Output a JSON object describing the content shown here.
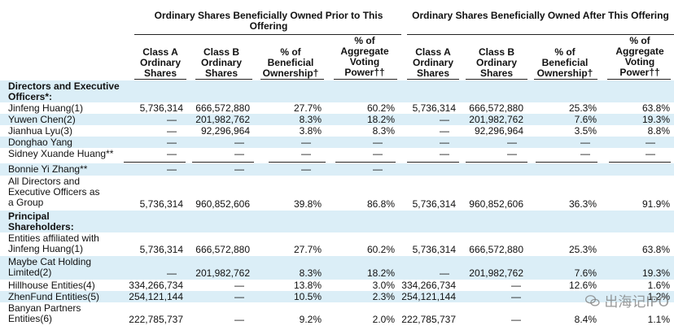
{
  "headers": {
    "prior": "Ordinary Shares Beneficially Owned Prior to This Offering",
    "after": "Ordinary Shares Beneficially Owned After This Offering",
    "columns": [
      "Class A Ordinary Shares",
      "Class B Ordinary Shares",
      "% of Beneficial Ownership†",
      "% of Aggregate Voting Power††",
      "Class A Ordinary Shares",
      "Class B Ordinary Shares",
      "% of Beneficial Ownership†",
      "% of Aggregate Voting Power††"
    ]
  },
  "sections": {
    "directors": "Directors and Executive Officers*:",
    "principal": "Principal Shareholders:"
  },
  "rows": [
    {
      "label": "Jinfeng Huang(1)",
      "values": [
        "5,736,314",
        "666,572,880",
        "27.7%",
        "60.2%",
        "5,736,314",
        "666,572,880",
        "25.3%",
        "63.8%"
      ]
    },
    {
      "label": "Yuwen Chen(2)",
      "values": [
        "—",
        "201,982,762",
        "8.3%",
        "18.2%",
        "—",
        "201,982,762",
        "7.6%",
        "19.3%"
      ]
    },
    {
      "label": "Jianhua Lyu(3)",
      "values": [
        "—",
        "92,296,964",
        "3.8%",
        "8.3%",
        "—",
        "92,296,964",
        "3.5%",
        "8.8%"
      ]
    },
    {
      "label": "Donghao Yang",
      "values": [
        "—",
        "—",
        "—",
        "—",
        "—",
        "—",
        "—",
        "—"
      ]
    },
    {
      "label": "Sidney Xuande Huang**",
      "values": [
        "—",
        "—",
        "—",
        "—",
        "—",
        "—",
        "—",
        "—"
      ]
    },
    {
      "label": "Bonnie Yi Zhang**",
      "values": [
        "—",
        "—",
        "—",
        "—",
        "",
        "",
        "",
        ""
      ]
    },
    {
      "label": "All Directors and Executive Officers as a Group",
      "values": [
        "5,736,314",
        "960,852,606",
        "39.8%",
        "86.8%",
        "5,736,314",
        "960,852,606",
        "36.3%",
        "91.9%"
      ]
    },
    {
      "label": "Entities affiliated with Jinfeng Huang(1)",
      "values": [
        "5,736,314",
        "666,572,880",
        "27.7%",
        "60.2%",
        "5,736,314",
        "666,572,880",
        "25.3%",
        "63.8%"
      ]
    },
    {
      "label": "Maybe Cat Holding Limited(2)",
      "values": [
        "—",
        "201,982,762",
        "8.3%",
        "18.2%",
        "—",
        "201,982,762",
        "7.6%",
        "19.3%"
      ]
    },
    {
      "label": "Hillhouse Entities(4)",
      "values": [
        "334,266,734",
        "—",
        "13.8%",
        "3.0%",
        "334,266,734",
        "—",
        "12.6%",
        "1.6%"
      ]
    },
    {
      "label": "ZhenFund Entities(5)",
      "values": [
        "254,121,144",
        "—",
        "10.5%",
        "2.3%",
        "254,121,144",
        "—",
        "",
        "1.2%"
      ]
    },
    {
      "label": "Banyan Partners Entities(6)",
      "values": [
        "222,785,737",
        "—",
        "9.2%",
        "2.0%",
        "222,785,737",
        "—",
        "8.4%",
        "1.1%"
      ]
    }
  ],
  "watermark": "出海记IPO"
}
